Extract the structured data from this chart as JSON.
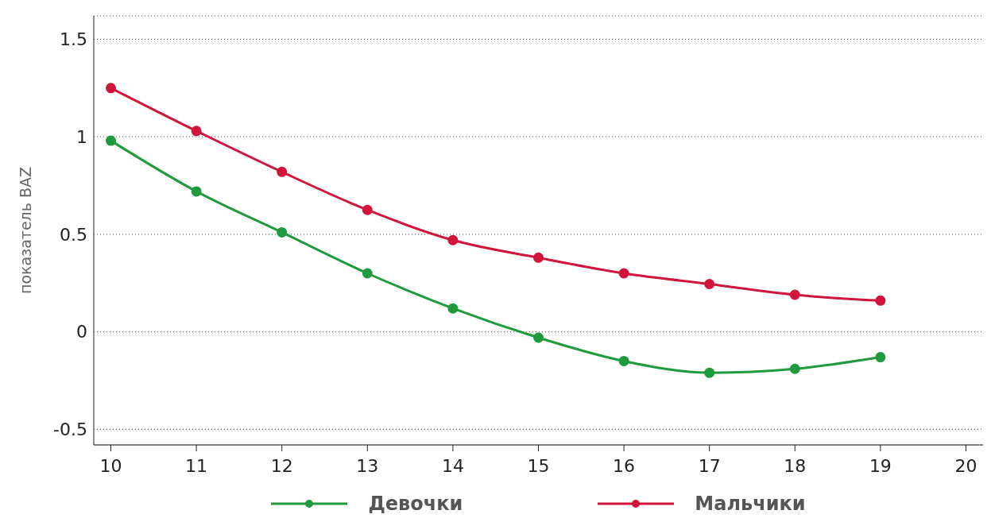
{
  "chart_data": {
    "type": "line",
    "ylabel": "показатель  BAZ",
    "x": [
      10,
      11,
      12,
      13,
      14,
      15,
      16,
      17,
      18,
      19
    ],
    "series": [
      {
        "name": "Девочки",
        "color": "#1f9a3c",
        "values": [
          0.98,
          0.72,
          0.51,
          0.3,
          0.12,
          -0.03,
          -0.15,
          -0.21,
          -0.19,
          -0.13
        ]
      },
      {
        "name": "Мальчики",
        "color": "#d0143c",
        "values": [
          1.25,
          1.03,
          0.82,
          0.625,
          0.47,
          0.38,
          0.3,
          0.245,
          0.19,
          0.16
        ]
      }
    ],
    "xlim": [
      9.8,
      20.2
    ],
    "xticks": [
      10,
      11,
      12,
      13,
      14,
      15,
      16,
      17,
      18,
      19,
      20
    ],
    "ylim": [
      -0.58,
      1.62
    ],
    "yticks": [
      -0.5,
      0,
      0.5,
      1,
      1.5
    ],
    "grid": "y",
    "legend": "bottom",
    "marker": "circle",
    "line_style": "solid"
  }
}
